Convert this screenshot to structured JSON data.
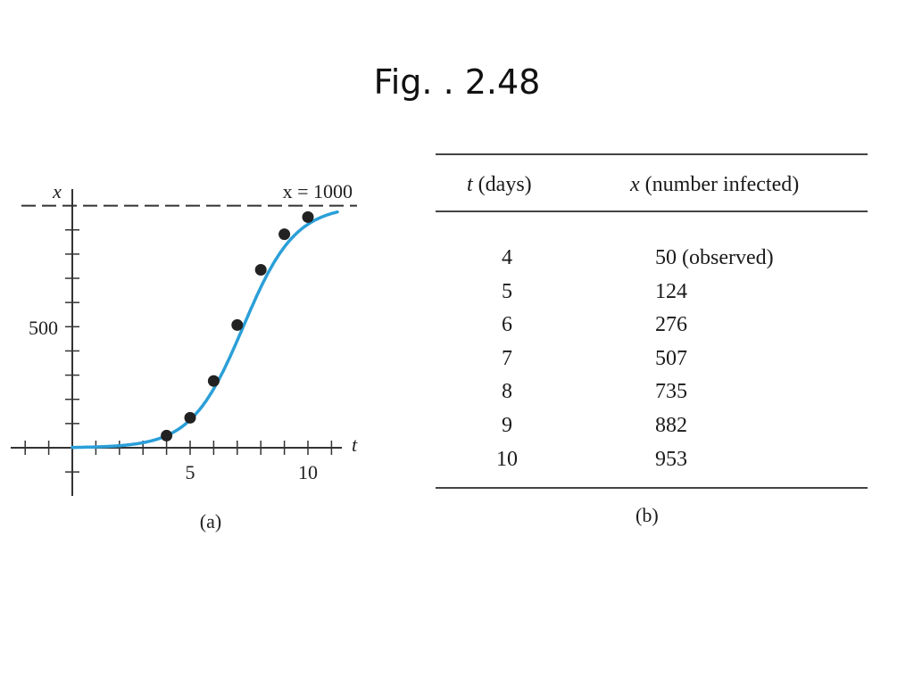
{
  "title": "Fig. .  2.48",
  "chart_data": {
    "type": "line",
    "caption": "(a)",
    "xlabel": "t",
    "ylabel": "x",
    "asymptote_label": "x = 1000",
    "asymptote": 1000,
    "x_ticklabels": [
      "5",
      "10"
    ],
    "y_ticklabels": [
      "500"
    ],
    "xlim": [
      -2.5,
      12
    ],
    "ylim": [
      -200,
      1050
    ],
    "points": [
      {
        "t": 4,
        "x": 50
      },
      {
        "t": 5,
        "x": 124
      },
      {
        "t": 6,
        "x": 276
      },
      {
        "t": 7,
        "x": 507
      },
      {
        "t": 8,
        "x": 735
      },
      {
        "t": 9,
        "x": 882
      },
      {
        "t": 10,
        "x": 953
      }
    ],
    "curve_color": "#2a9fd8",
    "point_color": "#222222"
  },
  "table": {
    "caption": "(b)",
    "header_t_var": "t",
    "header_t_rest": " (days)",
    "header_x_var": "x",
    "header_x_rest": " (number infected)",
    "rows": [
      {
        "t": "4",
        "x": "50 (observed)"
      },
      {
        "t": "5",
        "x": "124"
      },
      {
        "t": "6",
        "x": "276"
      },
      {
        "t": "7",
        "x": "507"
      },
      {
        "t": "8",
        "x": "735"
      },
      {
        "t": "9",
        "x": "882"
      },
      {
        "t": "10",
        "x": "953"
      }
    ]
  }
}
